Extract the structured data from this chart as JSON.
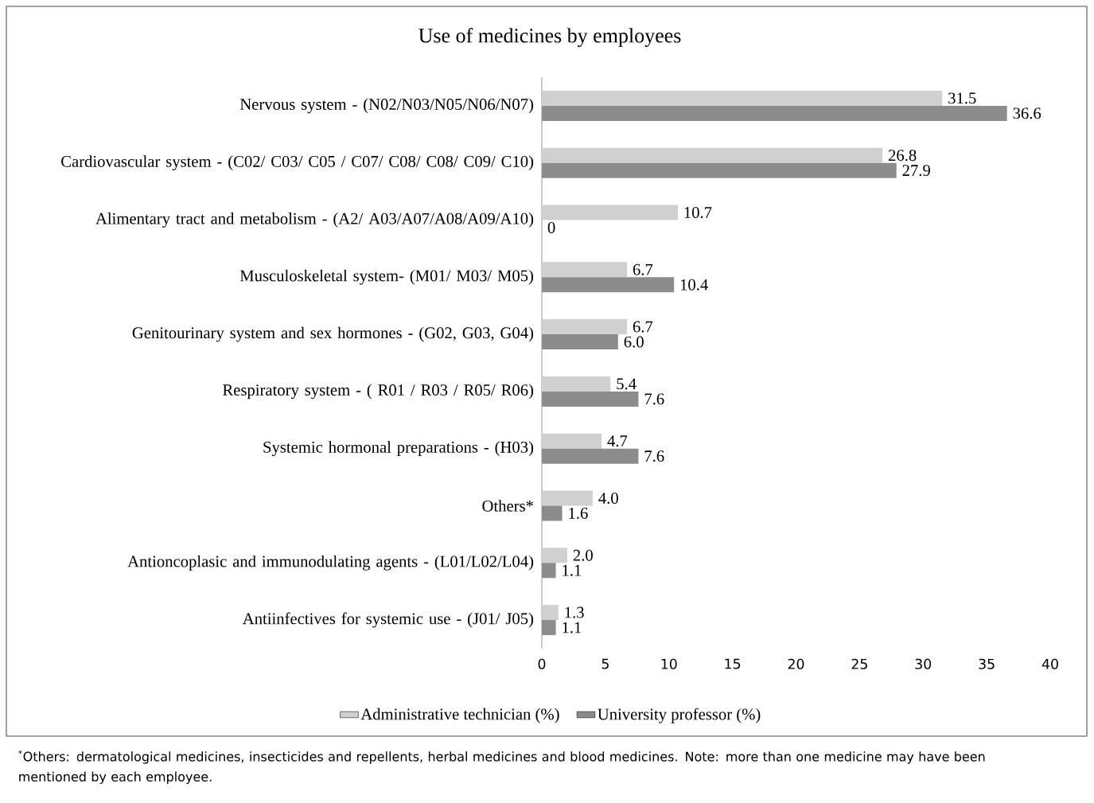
{
  "chart_data": {
    "type": "bar",
    "orientation": "horizontal",
    "title": "Use of medicines by employees",
    "categories": [
      "Nervous system - (N02/N03/N05/N06/N07)",
      "Cardiovascular system - (C02/ C03/ C05 / C07/ C08/ C08/ C09/ C10)",
      "Alimentary tract and metabolism - (A2/ A03/A07/A08/A09/A10)",
      "Musculoskeletal system- (M01/ M03/ M05)",
      "Genitourinary system and sex hormones - (G02, G03, G04)",
      "Respiratory system - ( R01 / R03 / R05/ R06)",
      "Systemic hormonal preparations - (H03)",
      "Others*",
      "Antioncoplasic and immunodulating agents - (L01/L02/L04)",
      "Antiinfectives for systemic use - (J01/ J05)"
    ],
    "series": [
      {
        "name": "Administrative technician (%)",
        "color": "#d0d0d0",
        "values": [
          31.5,
          26.8,
          10.7,
          6.7,
          6.7,
          5.4,
          4.7,
          4.0,
          2.0,
          1.3
        ],
        "value_labels": [
          "31.5",
          "26.8",
          "10.7",
          "6.7",
          "6.7",
          "5.4",
          "4.7",
          "4.0",
          "2.0",
          "1.3"
        ]
      },
      {
        "name": "University professor (%)",
        "color": "#8c8c8c",
        "values": [
          36.6,
          27.9,
          0,
          10.4,
          6.0,
          7.6,
          7.6,
          1.6,
          1.1,
          1.1
        ],
        "value_labels": [
          "36.6",
          "27.9",
          "0",
          "10.4",
          "6.0",
          "7.6",
          "7.6",
          "1.6",
          "1.1",
          "1.1"
        ]
      }
    ],
    "xlim": [
      0,
      40
    ],
    "xticks": [
      0,
      5,
      10,
      15,
      20,
      25,
      30,
      35,
      40
    ],
    "legend": "bottom",
    "annotations": [
      "$^{*}$Others: dermatological medicines, insecticides and repellents, herbal medicines and blood medicines. Note: more than one medicine may have been mentioned by each employee."
    ]
  }
}
